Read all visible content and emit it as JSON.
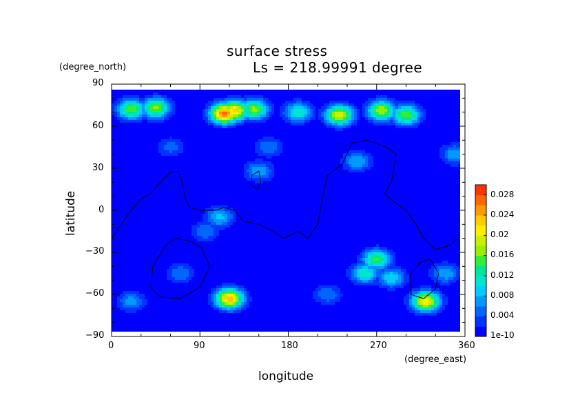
{
  "chart_data": {
    "type": "heatmap",
    "title": "surface stress",
    "subtitle": "Ls = 218.99991 degree",
    "xlabel": "longitude",
    "ylabel": "latitude",
    "xunit": "(degree_east)",
    "yunit": "(degree_north)",
    "xlim": [
      0,
      360
    ],
    "ylim": [
      -90,
      90
    ],
    "xticks": [
      "0",
      "90",
      "180",
      "270",
      "360"
    ],
    "yticks": [
      "90",
      "60",
      "30",
      "0",
      "−30",
      "−60",
      "−90"
    ],
    "colorbar": {
      "ticks": [
        "0.028",
        "0.024",
        "0.02",
        "0.016",
        "0.012",
        "0.008",
        "0.004",
        "1e-10"
      ],
      "range": [
        0,
        0.03
      ],
      "colors": [
        "#0000ff",
        "#0033ff",
        "#0066ff",
        "#0099ff",
        "#00ccff",
        "#00e6cc",
        "#00e699",
        "#33ee33",
        "#99ee00",
        "#ccee00",
        "#ffee00",
        "#ffcc00",
        "#ff9900",
        "#ff6600",
        "#ff3300"
      ]
    },
    "hotspots": [
      {
        "lon": 20,
        "lat": 72,
        "value": 0.016
      },
      {
        "lon": 45,
        "lat": 73,
        "value": 0.017
      },
      {
        "lon": 115,
        "lat": 69,
        "value": 0.027
      },
      {
        "lon": 125,
        "lat": 71,
        "value": 0.023
      },
      {
        "lon": 145,
        "lat": 72,
        "value": 0.017
      },
      {
        "lon": 190,
        "lat": 70,
        "value": 0.012
      },
      {
        "lon": 232,
        "lat": 68,
        "value": 0.02
      },
      {
        "lon": 275,
        "lat": 71,
        "value": 0.018
      },
      {
        "lon": 300,
        "lat": 68,
        "value": 0.016
      },
      {
        "lon": 120,
        "lat": -63,
        "value": 0.024
      },
      {
        "lon": 320,
        "lat": -65,
        "value": 0.022
      },
      {
        "lon": 270,
        "lat": -35,
        "value": 0.015
      },
      {
        "lon": 258,
        "lat": -45,
        "value": 0.012
      },
      {
        "lon": 285,
        "lat": -48,
        "value": 0.01
      },
      {
        "lon": 110,
        "lat": -5,
        "value": 0.009
      },
      {
        "lon": 95,
        "lat": -15,
        "value": 0.006
      },
      {
        "lon": 150,
        "lat": 28,
        "value": 0.008
      },
      {
        "lon": 250,
        "lat": 35,
        "value": 0.008
      },
      {
        "lon": 70,
        "lat": -45,
        "value": 0.006
      },
      {
        "lon": 340,
        "lat": -45,
        "value": 0.008
      },
      {
        "lon": 20,
        "lat": -65,
        "value": 0.007
      },
      {
        "lon": 160,
        "lat": 45,
        "value": 0.006
      },
      {
        "lon": 220,
        "lat": -60,
        "value": 0.006
      },
      {
        "lon": 350,
        "lat": 40,
        "value": 0.008
      },
      {
        "lon": 60,
        "lat": 45,
        "value": 0.005
      }
    ],
    "contours": [
      {
        "points": [
          [
            0,
            -20
          ],
          [
            10,
            -10
          ],
          [
            20,
            0
          ],
          [
            30,
            8
          ],
          [
            40,
            12
          ],
          [
            50,
            20
          ],
          [
            60,
            27
          ],
          [
            68,
            28
          ],
          [
            72,
            20
          ],
          [
            75,
            8
          ],
          [
            80,
            2
          ],
          [
            90,
            0
          ],
          [
            105,
            0
          ],
          [
            115,
            2
          ],
          [
            125,
            0
          ],
          [
            135,
            -8
          ],
          [
            150,
            -10
          ],
          [
            165,
            -15
          ],
          [
            175,
            -20
          ],
          [
            190,
            -15
          ],
          [
            200,
            -20
          ],
          [
            210,
            -10
          ],
          [
            215,
            10
          ],
          [
            220,
            25
          ],
          [
            235,
            33
          ],
          [
            245,
            48
          ],
          [
            260,
            50
          ],
          [
            280,
            45
          ],
          [
            290,
            40
          ],
          [
            285,
            20
          ],
          [
            278,
            12
          ],
          [
            290,
            5
          ],
          [
            300,
            0
          ],
          [
            310,
            -10
          ],
          [
            318,
            -20
          ],
          [
            330,
            -28
          ],
          [
            345,
            -25
          ],
          [
            352,
            -20
          ]
        ]
      },
      {
        "points": [
          [
            65,
            -20
          ],
          [
            55,
            -25
          ],
          [
            42,
            -40
          ],
          [
            40,
            -55
          ],
          [
            50,
            -62
          ],
          [
            70,
            -63
          ],
          [
            90,
            -55
          ],
          [
            100,
            -40
          ],
          [
            92,
            -27
          ],
          [
            80,
            -22
          ],
          [
            65,
            -20
          ]
        ]
      },
      {
        "points": [
          [
            143,
            25
          ],
          [
            150,
            28
          ],
          [
            152,
            20
          ],
          [
            148,
            15
          ],
          [
            142,
            18
          ],
          [
            143,
            25
          ]
        ]
      },
      {
        "points": [
          [
            325,
            -35
          ],
          [
            315,
            -37
          ],
          [
            305,
            -45
          ],
          [
            305,
            -60
          ],
          [
            318,
            -63
          ],
          [
            330,
            -56
          ],
          [
            333,
            -45
          ],
          [
            325,
            -35
          ]
        ]
      }
    ]
  }
}
